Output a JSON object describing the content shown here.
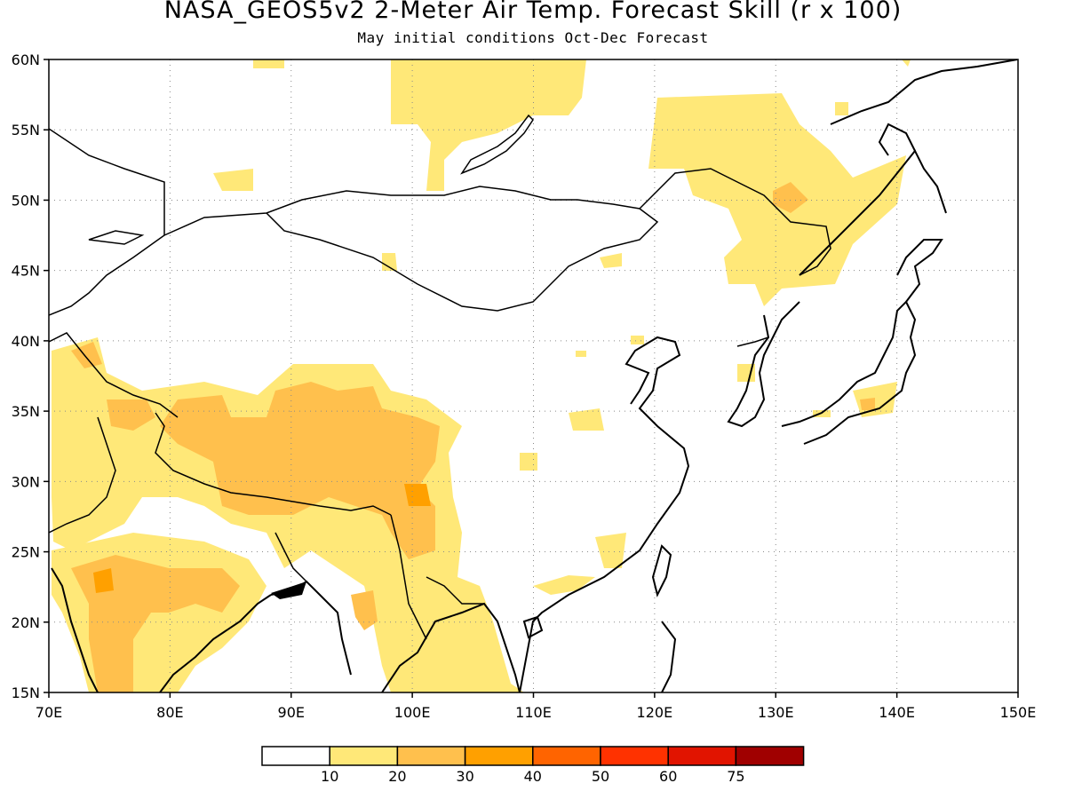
{
  "title": "NASA_GEOS5v2 2-Meter Air Temp. Forecast Skill (r x 100)",
  "subtitle": "May initial conditions  Oct-Dec Forecast",
  "map": {
    "lon_range": [
      70,
      150
    ],
    "lat_range": [
      15,
      60
    ],
    "lon_ticks": [
      "70E",
      "80E",
      "90E",
      "100E",
      "110E",
      "120E",
      "130E",
      "140E",
      "150E"
    ],
    "lat_ticks": [
      "15N",
      "20N",
      "25N",
      "30N",
      "35N",
      "40N",
      "45N",
      "50N",
      "55N",
      "60N"
    ],
    "gridlines": "dotted"
  },
  "legend": {
    "labels": [
      "10",
      "20",
      "30",
      "40",
      "50",
      "60",
      "75"
    ],
    "colors": [
      "#ffffff",
      "#ffe878",
      "#ffc04d",
      "#ffa000",
      "#ff6400",
      "#ff3200",
      "#e11400",
      "#a00000"
    ]
  }
}
